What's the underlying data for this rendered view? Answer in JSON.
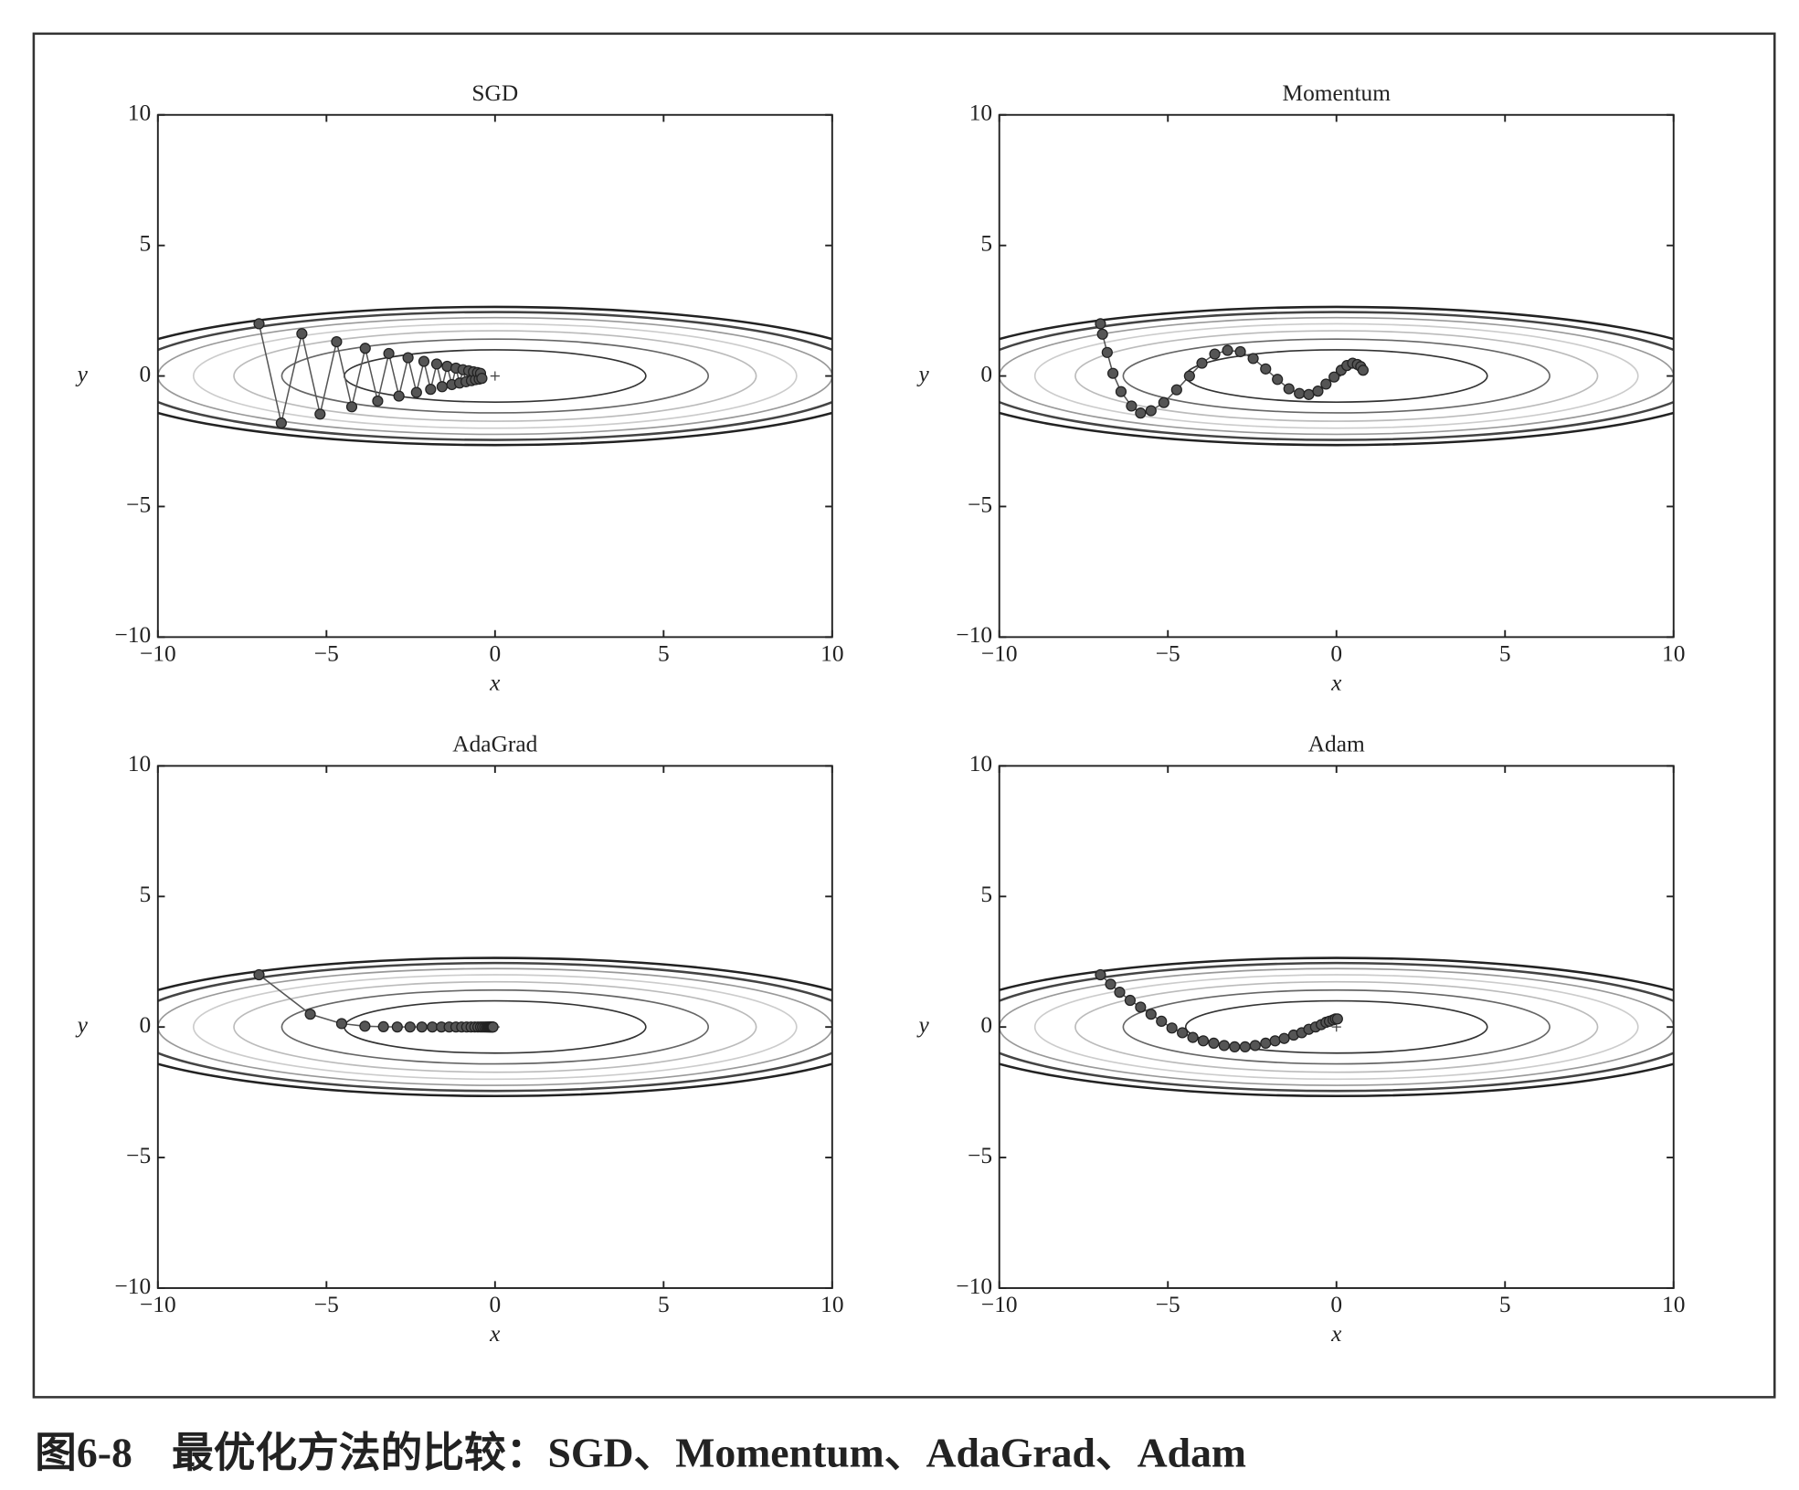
{
  "chart_data": [
    {
      "type": "line",
      "title": "SGD",
      "x_label": "x",
      "y_label": "y",
      "xlim": [
        -10,
        10
      ],
      "ylim": [
        -10,
        10
      ],
      "xticks": [
        {
          "value": -10,
          "label": "−10"
        },
        {
          "value": -5,
          "label": "−5"
        },
        0,
        5,
        10
      ],
      "yticks": [
        {
          "value": -10,
          "label": "−10"
        },
        {
          "value": -5,
          "label": "−5"
        },
        0,
        5,
        10
      ],
      "markers": true,
      "series": [
        {
          "color": "#555555",
          "x": [
            -7,
            -6.34,
            -5.73,
            -5.19,
            -4.7,
            -4.25,
            -3.85,
            -3.48,
            -3.15,
            -2.85,
            -2.58,
            -2.33,
            -2.11,
            -1.91,
            -1.73,
            -1.57,
            -1.42,
            -1.28,
            -1.16,
            -1.05,
            -0.95,
            -0.86,
            -0.78,
            -0.7,
            -0.64,
            -0.58,
            -0.52,
            -0.47,
            -0.43,
            -0.39
          ],
          "values": [
            2,
            -1.8,
            1.62,
            -1.46,
            1.31,
            -1.18,
            1.06,
            -0.96,
            0.86,
            -0.77,
            0.7,
            -0.63,
            0.56,
            -0.51,
            0.46,
            -0.41,
            0.37,
            -0.33,
            0.3,
            -0.27,
            0.24,
            -0.22,
            0.2,
            -0.18,
            0.16,
            -0.14,
            0.13,
            -0.12,
            0.1,
            -0.09
          ]
        }
      ]
    },
    {
      "type": "line",
      "title": "Momentum",
      "x_label": "x",
      "y_label": "y",
      "xlim": [
        -10,
        10
      ],
      "ylim": [
        -10,
        10
      ],
      "xticks": [
        {
          "value": -10,
          "label": "−10"
        },
        {
          "value": -5,
          "label": "−5"
        },
        0,
        5,
        10
      ],
      "yticks": [
        {
          "value": -10,
          "label": "−10"
        },
        {
          "value": -5,
          "label": "−5"
        },
        0,
        5,
        10
      ],
      "markers": true,
      "series": [
        {
          "color": "#555555",
          "x": [
            -7.0,
            -6.94,
            -6.8,
            -6.63,
            -6.39,
            -6.08,
            -5.81,
            -5.5,
            -5.12,
            -4.74,
            -4.36,
            -3.99,
            -3.61,
            -3.23,
            -2.85,
            -2.47,
            -2.1,
            -1.75,
            -1.41,
            -1.1,
            -0.82,
            -0.55,
            -0.31,
            -0.07,
            0.14,
            0.31,
            0.48,
            0.62,
            0.72,
            0.79
          ],
          "values": [
            2.0,
            1.6,
            0.9,
            0.1,
            -0.6,
            -1.15,
            -1.42,
            -1.33,
            -1.02,
            -0.53,
            0.0,
            0.49,
            0.84,
            0.98,
            0.93,
            0.67,
            0.27,
            -0.13,
            -0.49,
            -0.67,
            -0.71,
            -0.58,
            -0.31,
            -0.04,
            0.22,
            0.4,
            0.49,
            0.44,
            0.36,
            0.22
          ]
        }
      ]
    },
    {
      "type": "line",
      "title": "AdaGrad",
      "x_label": "x",
      "y_label": "y",
      "xlim": [
        -10,
        10
      ],
      "ylim": [
        -10,
        10
      ],
      "xticks": [
        {
          "value": -10,
          "label": "−10"
        },
        {
          "value": -5,
          "label": "−5"
        },
        0,
        5,
        10
      ],
      "yticks": [
        {
          "value": -10,
          "label": "−10"
        },
        {
          "value": -5,
          "label": "−5"
        },
        0,
        5,
        10
      ],
      "markers": true,
      "series": [
        {
          "color": "#555555",
          "x": [
            -7,
            -5.48,
            -4.55,
            -3.86,
            -3.31,
            -2.9,
            -2.52,
            -2.17,
            -1.86,
            -1.59,
            -1.36,
            -1.16,
            -0.99,
            -0.84,
            -0.71,
            -0.6,
            -0.51,
            -0.43,
            -0.37,
            -0.31,
            -0.26,
            -0.22,
            -0.19,
            -0.16,
            -0.14,
            -0.12,
            -0.1,
            -0.08,
            -0.07,
            -0.06
          ],
          "values": [
            2,
            0.49,
            0.13,
            0.03,
            0.01,
            0,
            0,
            0,
            0,
            0,
            0,
            0,
            0,
            0,
            0,
            0,
            0,
            0,
            0,
            0,
            0,
            0,
            0,
            0,
            0,
            0,
            0,
            0,
            0,
            0
          ]
        }
      ]
    },
    {
      "type": "line",
      "title": "Adam",
      "x_label": "x",
      "y_label": "y",
      "xlim": [
        -10,
        10
      ],
      "ylim": [
        -10,
        10
      ],
      "xticks": [
        {
          "value": -10,
          "label": "−10"
        },
        {
          "value": -5,
          "label": "−5"
        },
        0,
        5,
        10
      ],
      "yticks": [
        {
          "value": -10,
          "label": "−10"
        },
        {
          "value": -5,
          "label": "−5"
        },
        0,
        5,
        10
      ],
      "markers": true,
      "series": [
        {
          "color": "#555555",
          "x": [
            -7.0,
            -6.7,
            -6.43,
            -6.12,
            -5.81,
            -5.5,
            -5.19,
            -4.88,
            -4.57,
            -4.26,
            -3.95,
            -3.64,
            -3.33,
            -3.02,
            -2.71,
            -2.41,
            -2.1,
            -1.82,
            -1.55,
            -1.27,
            -1.03,
            -0.82,
            -0.62,
            -0.45,
            -0.31,
            -0.21,
            -0.1,
            -0.03,
            0.03
          ],
          "values": [
            2.0,
            1.64,
            1.33,
            1.02,
            0.76,
            0.49,
            0.22,
            -0.04,
            -0.22,
            -0.4,
            -0.53,
            -0.62,
            -0.71,
            -0.76,
            -0.76,
            -0.71,
            -0.62,
            -0.53,
            -0.44,
            -0.31,
            -0.22,
            -0.09,
            0.0,
            0.09,
            0.18,
            0.22,
            0.27,
            0.31,
            0.31
          ]
        }
      ]
    }
  ],
  "caption": {
    "number": "图6-8",
    "text": "最优化方法的比较：SGD、Momentum、AdaGrad、Adam"
  }
}
